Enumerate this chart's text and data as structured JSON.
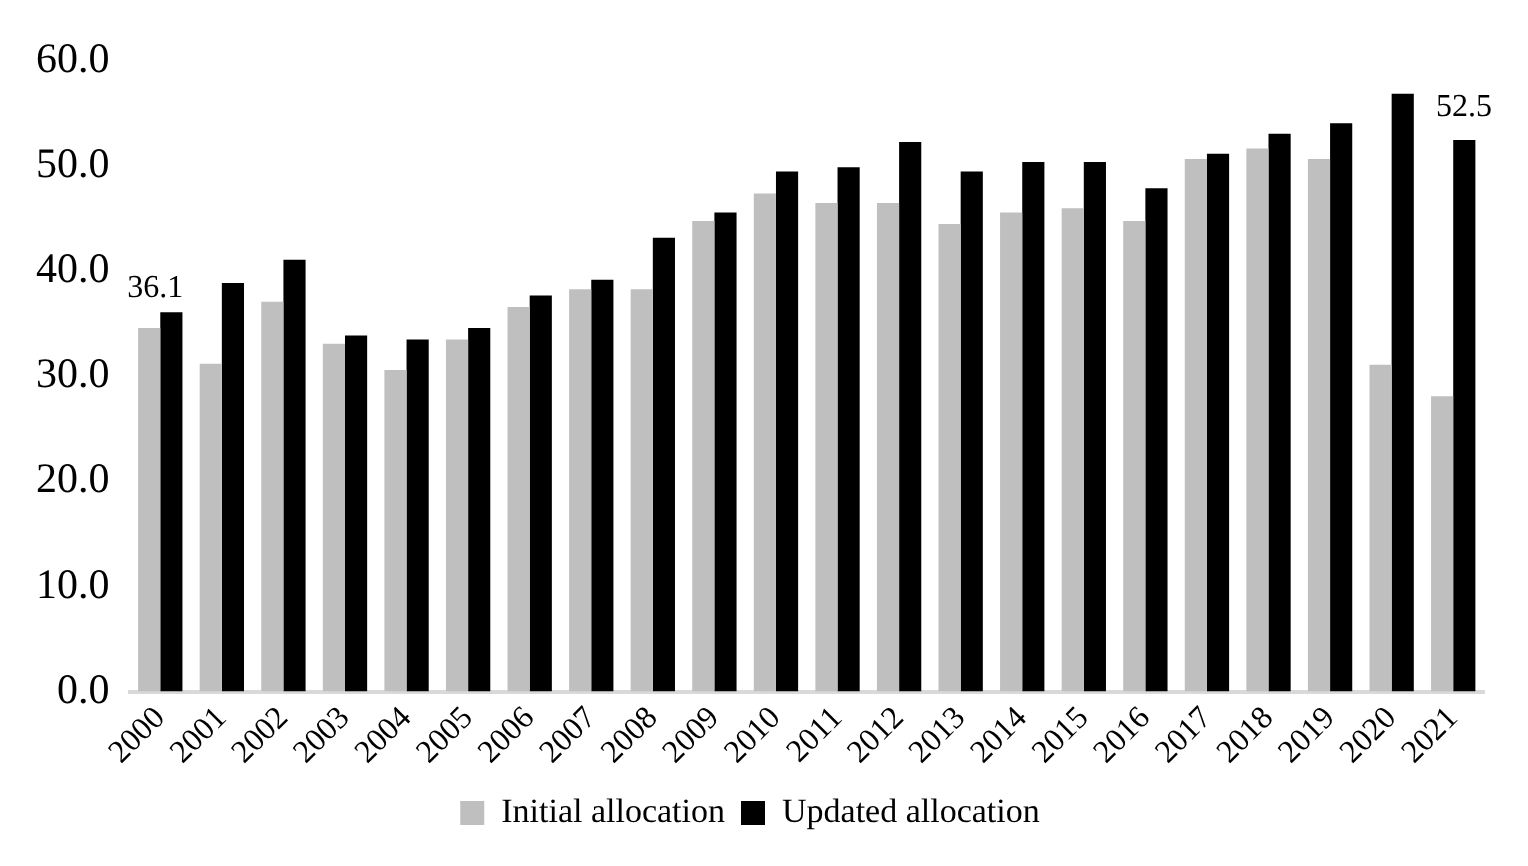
{
  "chart_data": {
    "type": "bar",
    "categories": [
      "2000",
      "2001",
      "2002",
      "2003",
      "2004",
      "2005",
      "2006",
      "2007",
      "2008",
      "2009",
      "2010",
      "2011",
      "2012",
      "2013",
      "2014",
      "2015",
      "2016",
      "2017",
      "2018",
      "2019",
      "2020",
      "2021"
    ],
    "series": [
      {
        "name": "Initial allocation",
        "color": "#bfbfbf",
        "values": [
          34.6,
          31.2,
          37.1,
          33.1,
          30.6,
          33.5,
          36.6,
          38.3,
          38.3,
          44.8,
          47.4,
          46.5,
          46.5,
          44.5,
          45.6,
          46.0,
          44.8,
          50.7,
          51.7,
          50.7,
          31.1,
          28.1
        ]
      },
      {
        "name": "Updated allocation",
        "color": "#000000",
        "values": [
          36.1,
          38.9,
          41.1,
          33.9,
          33.5,
          34.6,
          37.7,
          39.2,
          43.2,
          45.6,
          49.5,
          49.9,
          52.3,
          49.5,
          50.4,
          50.4,
          47.9,
          51.2,
          53.1,
          54.1,
          56.9,
          52.5
        ],
        "value_labels": [
          "36.1",
          null,
          null,
          null,
          null,
          null,
          null,
          null,
          null,
          null,
          null,
          null,
          null,
          null,
          null,
          null,
          null,
          null,
          null,
          null,
          null,
          "52.5"
        ]
      }
    ],
    "ylim": [
      0,
      60
    ],
    "yticks": [
      {
        "value": 0,
        "label": "0.0"
      },
      {
        "value": 10,
        "label": "10.0"
      },
      {
        "value": 20,
        "label": "20.0"
      },
      {
        "value": 30,
        "label": "30.0"
      },
      {
        "value": 40,
        "label": "40.0"
      },
      {
        "value": 50,
        "label": "50.0"
      },
      {
        "value": 60,
        "label": "60.0"
      }
    ],
    "grid": false,
    "legend": "bottom"
  }
}
